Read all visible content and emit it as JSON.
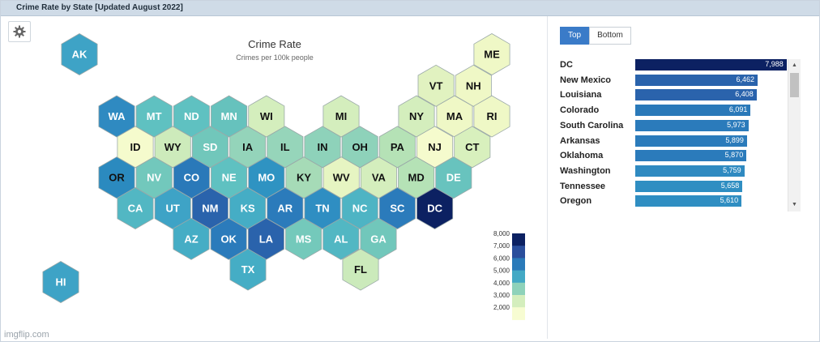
{
  "window": {
    "title": "Crime Rate by State [Updated August 2022]"
  },
  "chart_data": [
    {
      "type": "map",
      "title": "Crime Rate",
      "subtitle": "Crimes per 100k people",
      "legend": {
        "ticks": [
          "8,000",
          "7,000",
          "6,000",
          "5,000",
          "4,000",
          "3,000",
          "2,000"
        ],
        "placement": "bottom-right"
      },
      "states": [
        {
          "abbr": "AK",
          "col": 0,
          "row": 0,
          "color": "#3ea3c6"
        },
        {
          "abbr": "ME",
          "col": 11,
          "row": 0,
          "color": "#eff8c6"
        },
        {
          "abbr": "VT",
          "col": 9,
          "row": 1,
          "color": "#e1f2c0"
        },
        {
          "abbr": "NH",
          "col": 10,
          "row": 1,
          "color": "#eff8c6"
        },
        {
          "abbr": "WA",
          "col": 0,
          "row": 2,
          "color": "#2f8ac1"
        },
        {
          "abbr": "MT",
          "col": 1,
          "row": 2,
          "color": "#5fc1c1"
        },
        {
          "abbr": "ND",
          "col": 2,
          "row": 2,
          "color": "#5fc1c1"
        },
        {
          "abbr": "MN",
          "col": 3,
          "row": 2,
          "color": "#66c2bd"
        },
        {
          "abbr": "WI",
          "col": 4,
          "row": 2,
          "color": "#d4eebd"
        },
        {
          "abbr": "MI",
          "col": 6,
          "row": 2,
          "color": "#d4eebd"
        },
        {
          "abbr": "NY",
          "col": 8,
          "row": 2,
          "color": "#d4eebd"
        },
        {
          "abbr": "MA",
          "col": 9,
          "row": 2,
          "color": "#eff8c6"
        },
        {
          "abbr": "RI",
          "col": 10,
          "row": 2,
          "color": "#eff8c6"
        },
        {
          "abbr": "ID",
          "col": 0,
          "row": 3,
          "color": "#f5fbcd"
        },
        {
          "abbr": "WY",
          "col": 1,
          "row": 3,
          "color": "#cdebbb"
        },
        {
          "abbr": "SD",
          "col": 2,
          "row": 3,
          "color": "#71c7bb"
        },
        {
          "abbr": "IA",
          "col": 3,
          "row": 3,
          "color": "#94d4ba"
        },
        {
          "abbr": "IL",
          "col": 4,
          "row": 3,
          "color": "#96d5ba"
        },
        {
          "abbr": "IN",
          "col": 5,
          "row": 3,
          "color": "#8ed2ba"
        },
        {
          "abbr": "OH",
          "col": 6,
          "row": 3,
          "color": "#8ed2ba"
        },
        {
          "abbr": "PA",
          "col": 7,
          "row": 3,
          "color": "#b5e2b6"
        },
        {
          "abbr": "NJ",
          "col": 8,
          "row": 3,
          "color": "#f5fbcd"
        },
        {
          "abbr": "CT",
          "col": 9,
          "row": 3,
          "color": "#d8f0bd"
        },
        {
          "abbr": "OR",
          "col": 0,
          "row": 4,
          "color": "#2b8abf"
        },
        {
          "abbr": "NV",
          "col": 1,
          "row": 4,
          "color": "#72c8bc"
        },
        {
          "abbr": "CO",
          "col": 2,
          "row": 4,
          "color": "#2a79b9"
        },
        {
          "abbr": "NE",
          "col": 3,
          "row": 4,
          "color": "#5fc1c1"
        },
        {
          "abbr": "MO",
          "col": 4,
          "row": 4,
          "color": "#2f93c2"
        },
        {
          "abbr": "KY",
          "col": 5,
          "row": 4,
          "color": "#a6dbb7"
        },
        {
          "abbr": "WV",
          "col": 6,
          "row": 4,
          "color": "#e6f5c2"
        },
        {
          "abbr": "VA",
          "col": 7,
          "row": 4,
          "color": "#d4eebd"
        },
        {
          "abbr": "MD",
          "col": 8,
          "row": 4,
          "color": "#b5e2b6"
        },
        {
          "abbr": "DE",
          "col": 9,
          "row": 4,
          "color": "#68c3be"
        },
        {
          "abbr": "CA",
          "col": 0,
          "row": 5,
          "color": "#52b7c3"
        },
        {
          "abbr": "UT",
          "col": 1,
          "row": 5,
          "color": "#3ea3c6"
        },
        {
          "abbr": "NM",
          "col": 2,
          "row": 5,
          "color": "#2a63ac"
        },
        {
          "abbr": "KS",
          "col": 3,
          "row": 5,
          "color": "#45adc5"
        },
        {
          "abbr": "AR",
          "col": 4,
          "row": 5,
          "color": "#2b7bbb"
        },
        {
          "abbr": "TN",
          "col": 5,
          "row": 5,
          "color": "#2f8ec2"
        },
        {
          "abbr": "NC",
          "col": 6,
          "row": 5,
          "color": "#4eb4c4"
        },
        {
          "abbr": "SC",
          "col": 7,
          "row": 5,
          "color": "#2b7bbb"
        },
        {
          "abbr": "DC",
          "col": 8,
          "row": 5,
          "color": "#0c2162"
        },
        {
          "abbr": "AZ",
          "col": 1,
          "row": 6,
          "color": "#45adc5"
        },
        {
          "abbr": "OK",
          "col": 2,
          "row": 6,
          "color": "#2b7bbb"
        },
        {
          "abbr": "LA",
          "col": 3,
          "row": 6,
          "color": "#2a63ac"
        },
        {
          "abbr": "MS",
          "col": 4,
          "row": 6,
          "color": "#74c9bb"
        },
        {
          "abbr": "AL",
          "col": 5,
          "row": 6,
          "color": "#52b7c3"
        },
        {
          "abbr": "GA",
          "col": 6,
          "row": 6,
          "color": "#71c7bb"
        },
        {
          "abbr": "HI",
          "col": 0,
          "row": 7,
          "color": "#3ea3c6"
        },
        {
          "abbr": "TX",
          "col": 3,
          "row": 7,
          "color": "#45adc5"
        },
        {
          "abbr": "FL",
          "col": 5,
          "row": 7,
          "color": "#cbeabb"
        }
      ]
    },
    {
      "type": "bar",
      "orientation": "horizontal",
      "categories": [
        "DC",
        "New Mexico",
        "Louisiana",
        "Colorado",
        "South Carolina",
        "Arkansas",
        "Oklahoma",
        "Washington",
        "Tennessee",
        "Oregon"
      ],
      "values": [
        7988,
        6462,
        6408,
        6091,
        5973,
        5899,
        5870,
        5759,
        5658,
        5610
      ],
      "labels": [
        "7,988",
        "6,462",
        "6,408",
        "6,091",
        "5,973",
        "5,899",
        "5,870",
        "5,759",
        "5,658",
        "5,610"
      ],
      "colors": [
        "#0c2162",
        "#2a63ac",
        "#2a63ac",
        "#2a79b9",
        "#2b7bbb",
        "#2b7bbb",
        "#2b7bbb",
        "#2f8ac1",
        "#2f8ec2",
        "#2f8ec2"
      ],
      "xlim": [
        0,
        8000
      ]
    }
  ],
  "legend_colors": [
    "#0c2162",
    "#2a4e9c",
    "#2a7ab9",
    "#43a9c5",
    "#8ed2ba",
    "#d4eebd",
    "#f7fcd2"
  ],
  "tabs": {
    "top": "Top",
    "bottom": "Bottom"
  },
  "watermark": "imgflip.com"
}
